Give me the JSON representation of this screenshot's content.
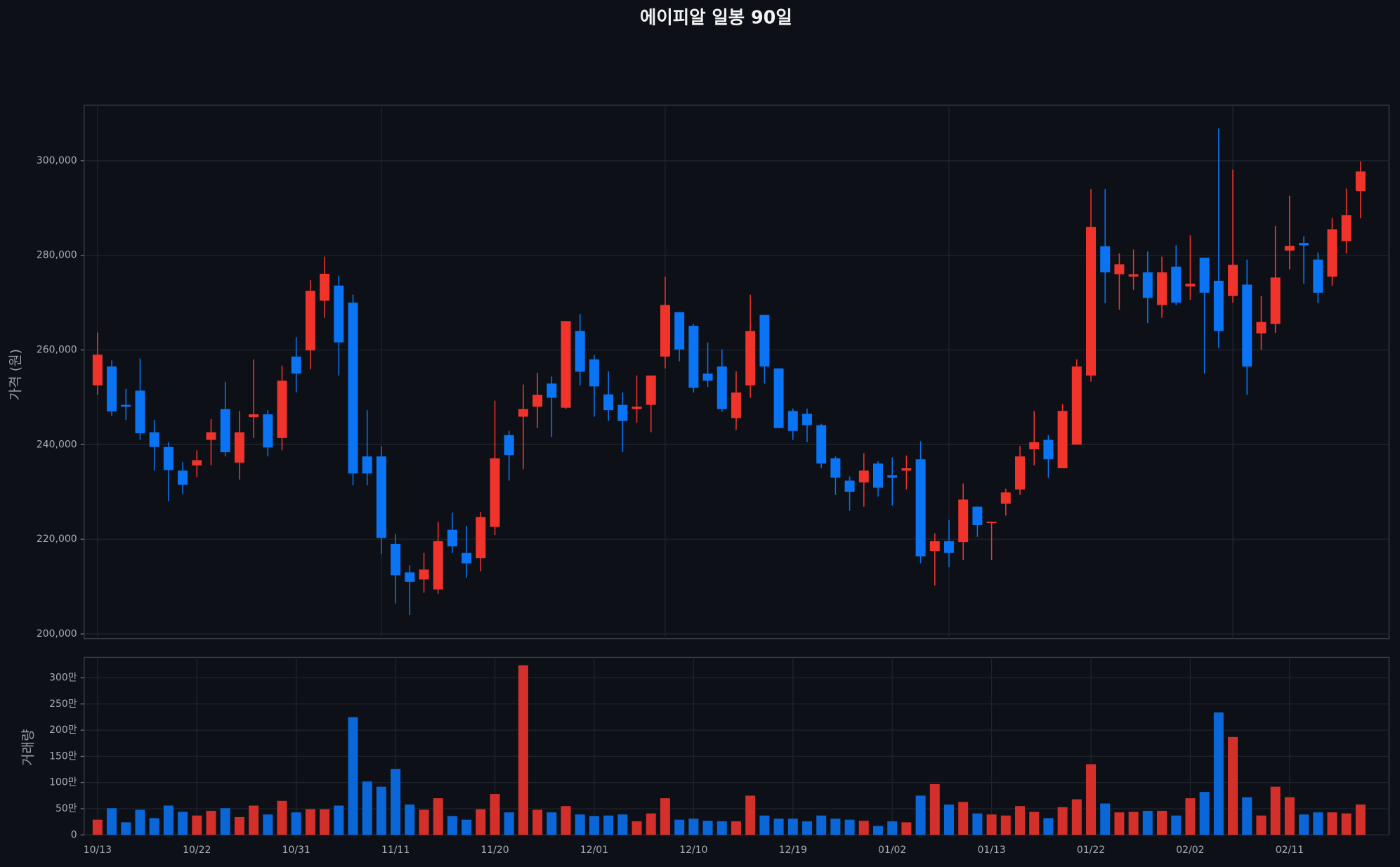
{
  "chart_data": [
    {
      "type": "candlestick",
      "title": "에이피알 일봉 90일",
      "ylabel": "가격 (원)",
      "up_color": "#f0342c",
      "down_color": "#0a74f5",
      "grid": true,
      "ylim": [
        199000,
        311700
      ],
      "yticks": [
        {
          "value": 200000,
          "label": "200,000"
        },
        {
          "value": 220000,
          "label": "220,000"
        },
        {
          "value": 240000,
          "label": "240,000"
        },
        {
          "value": 260000,
          "label": "260,000"
        },
        {
          "value": 280000,
          "label": "280,000"
        },
        {
          "value": 300000,
          "label": "300,000"
        }
      ],
      "open": [
        252500,
        256500,
        248400,
        251400,
        242600,
        239500,
        234500,
        235600,
        241000,
        247500,
        236200,
        245800,
        246400,
        241400,
        258600,
        259900,
        270400,
        273600,
        270000,
        237500,
        237500,
        219000,
        213000,
        211500,
        209400,
        222000,
        217100,
        216000,
        222600,
        242000,
        245900,
        248000,
        252900,
        247800,
        264000,
        258000,
        250600,
        248400,
        247500,
        248400,
        258600,
        268000,
        265100,
        255000,
        256500,
        245600,
        252500,
        267400,
        256100,
        247100,
        246500,
        244100,
        237100,
        232400,
        232000,
        236000,
        233500,
        234500,
        236900,
        217500,
        219600,
        219400,
        226900,
        223500,
        227500,
        230500,
        239000,
        241000,
        235000,
        240000,
        254600,
        281900,
        276000,
        275500,
        276400,
        269500,
        277600,
        273400,
        279500,
        274600,
        271400,
        273800,
        263500,
        265500,
        281000,
        282600,
        279100,
        275500,
        283000,
        293600
      ],
      "high": [
        263700,
        257800,
        251800,
        258200,
        245200,
        240500,
        236300,
        238800,
        245400,
        253300,
        247100,
        258000,
        247300,
        256700,
        262700,
        274800,
        279700,
        275700,
        271700,
        247300,
        239700,
        221100,
        214500,
        217100,
        223700,
        225600,
        222800,
        225800,
        249300,
        242900,
        252700,
        255200,
        254400,
        266100,
        267600,
        258900,
        255500,
        251000,
        254600,
        254600,
        275500,
        268000,
        265500,
        261600,
        260100,
        255500,
        271700,
        267400,
        256100,
        247600,
        247600,
        244400,
        237500,
        233300,
        238200,
        236500,
        237300,
        237700,
        240700,
        221300,
        224100,
        231800,
        226900,
        223700,
        230700,
        239700,
        247100,
        242000,
        248600,
        258000,
        294000,
        294000,
        280400,
        281200,
        280800,
        279700,
        282100,
        284200,
        279500,
        306800,
        298100,
        279100,
        271400,
        286200,
        292600,
        284000,
        280600,
        287900,
        294100,
        299800
      ],
      "low": [
        250500,
        246000,
        245200,
        241000,
        234500,
        228000,
        229500,
        233100,
        235600,
        237500,
        232600,
        241400,
        237500,
        238800,
        251000,
        255900,
        266800,
        254600,
        231400,
        231400,
        216900,
        206400,
        204000,
        208700,
        208500,
        217100,
        211900,
        213200,
        220900,
        232400,
        234800,
        243500,
        241600,
        247500,
        252500,
        245900,
        245000,
        238400,
        244600,
        242600,
        256100,
        257600,
        251000,
        252200,
        246900,
        243100,
        249900,
        252900,
        243500,
        241000,
        240500,
        235000,
        229400,
        226000,
        226900,
        229000,
        227100,
        230500,
        214900,
        210200,
        214100,
        215600,
        220500,
        215600,
        225000,
        229400,
        235600,
        233000,
        235000,
        240000,
        253300,
        269900,
        268500,
        272700,
        265700,
        266800,
        269500,
        270600,
        255000,
        260400,
        270000,
        250500,
        260000,
        263600,
        277000,
        274000,
        269900,
        273600,
        280400,
        287800
      ],
      "close": [
        259000,
        247000,
        248000,
        242400,
        239500,
        234600,
        231500,
        236700,
        242600,
        238400,
        242600,
        246400,
        239400,
        253500,
        255000,
        272500,
        276100,
        261600,
        233900,
        233900,
        220300,
        212400,
        211000,
        213600,
        219600,
        218500,
        214900,
        224700,
        237100,
        237800,
        247500,
        250500,
        249900,
        266100,
        255400,
        252300,
        247300,
        245000,
        248000,
        254600,
        269500,
        260100,
        252000,
        253500,
        247500,
        251000,
        264000,
        256500,
        243500,
        242900,
        244100,
        236000,
        233000,
        230000,
        234500,
        230900,
        233000,
        235000,
        216400,
        219600,
        217100,
        228400,
        223000,
        223700,
        229900,
        237500,
        240500,
        236900,
        247100,
        256500,
        286000,
        276400,
        278100,
        276000,
        271000,
        276400,
        270000,
        274000,
        272100,
        264000,
        278000,
        256500,
        265900,
        275300,
        282000,
        282100,
        272100,
        285500,
        288500,
        297700
      ]
    },
    {
      "type": "bar",
      "ylabel": "거래량",
      "up_color": "#d3302b",
      "down_color": "#0b67d8",
      "grid": true,
      "ylim": [
        0,
        3390000
      ],
      "yticks": [
        0,
        {
          "value": 500000,
          "label": "50만"
        },
        {
          "value": 1000000,
          "label": "100만"
        },
        {
          "value": 1500000,
          "label": "150만"
        },
        {
          "value": 2000000,
          "label": "200만"
        },
        {
          "value": 2500000,
          "label": "250만"
        },
        {
          "value": 3000000,
          "label": "300만"
        }
      ],
      "categories": [
        "10/13",
        null,
        null,
        null,
        null,
        null,
        null,
        "10/22",
        null,
        null,
        null,
        null,
        null,
        null,
        "10/31",
        null,
        null,
        null,
        null,
        null,
        null,
        "11/11",
        null,
        null,
        null,
        null,
        null,
        null,
        "11/20",
        null,
        null,
        null,
        null,
        null,
        null,
        "12/01",
        null,
        null,
        null,
        null,
        null,
        null,
        "12/10",
        null,
        null,
        null,
        null,
        null,
        null,
        "12/19",
        null,
        null,
        null,
        null,
        null,
        null,
        "01/02",
        null,
        null,
        null,
        null,
        null,
        null,
        "01/13",
        null,
        null,
        null,
        null,
        null,
        null,
        "01/22",
        null,
        null,
        null,
        null,
        null,
        null,
        "02/02",
        null,
        null,
        null,
        null,
        null,
        null,
        "02/11",
        null,
        null,
        null,
        null,
        null
      ],
      "values": [
        290000,
        510000,
        240000,
        480000,
        320000,
        560000,
        440000,
        370000,
        460000,
        510000,
        340000,
        560000,
        390000,
        650000,
        430000,
        490000,
        490000,
        560000,
        2250000,
        1020000,
        920000,
        1260000,
        580000,
        480000,
        700000,
        360000,
        290000,
        490000,
        780000,
        430000,
        3240000,
        480000,
        430000,
        550000,
        390000,
        360000,
        370000,
        390000,
        260000,
        410000,
        700000,
        290000,
        310000,
        270000,
        260000,
        260000,
        750000,
        370000,
        310000,
        310000,
        260000,
        370000,
        310000,
        290000,
        270000,
        170000,
        260000,
        240000,
        750000,
        970000,
        580000,
        630000,
        410000,
        390000,
        370000,
        550000,
        440000,
        320000,
        530000,
        680000,
        1350000,
        600000,
        430000,
        440000,
        460000,
        460000,
        370000,
        700000,
        820000,
        2340000,
        1870000,
        720000,
        370000,
        920000,
        720000,
        390000,
        430000,
        430000,
        410000,
        580000
      ]
    }
  ]
}
